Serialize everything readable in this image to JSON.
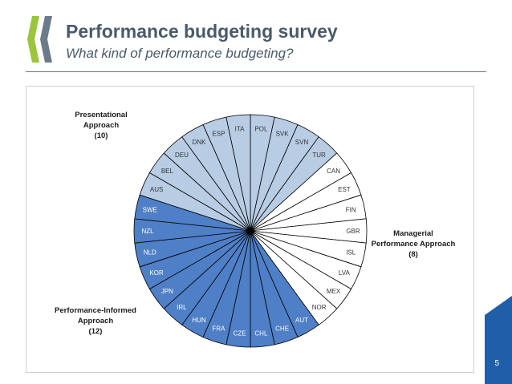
{
  "header": {
    "title": "Performance budgeting survey",
    "subtitle": "What kind of performance budgeting?"
  },
  "page_number": "5",
  "chart_data": {
    "type": "pie",
    "slice_order": "clockwise from top",
    "groups": [
      {
        "name": "Presentational\nApproach\n(10)",
        "count": 10,
        "color": "#b8cce4",
        "members": [
          "AUS",
          "BEL",
          "DEU",
          "DNK",
          "ESP",
          "ITA",
          "POL",
          "SVK",
          "SVN",
          "TUR"
        ]
      },
      {
        "name": "Managerial\nPerformance Approach\n(8)",
        "count": 8,
        "color": "#ffffff",
        "members": [
          "CAN",
          "EST",
          "FIN",
          "GBR",
          "ISL",
          "LVA",
          "MEX",
          "NOR"
        ]
      },
      {
        "name": "Performance-Informed\nApproach\n(12)",
        "count": 12,
        "color": "#4f7fc6",
        "members": [
          "AUT",
          "CHE",
          "CHL",
          "CZE",
          "FRA",
          "HUN",
          "IRL",
          "JPN",
          "KOR",
          "NLD",
          "NZL",
          "SWE"
        ]
      }
    ],
    "slices": [
      {
        "label": "POL",
        "group": 0,
        "value": 1
      },
      {
        "label": "SVK",
        "group": 0,
        "value": 1
      },
      {
        "label": "SVN",
        "group": 0,
        "value": 1
      },
      {
        "label": "TUR",
        "group": 0,
        "value": 1
      },
      {
        "label": "CAN",
        "group": 1,
        "value": 1
      },
      {
        "label": "EST",
        "group": 1,
        "value": 1
      },
      {
        "label": "FIN",
        "group": 1,
        "value": 1
      },
      {
        "label": "GBR",
        "group": 1,
        "value": 1
      },
      {
        "label": "ISL",
        "group": 1,
        "value": 1
      },
      {
        "label": "LVA",
        "group": 1,
        "value": 1
      },
      {
        "label": "MEX",
        "group": 1,
        "value": 1
      },
      {
        "label": "NOR",
        "group": 1,
        "value": 1
      },
      {
        "label": "AUT",
        "group": 2,
        "value": 1
      },
      {
        "label": "CHE",
        "group": 2,
        "value": 1
      },
      {
        "label": "CHL",
        "group": 2,
        "value": 1
      },
      {
        "label": "CZE",
        "group": 2,
        "value": 1
      },
      {
        "label": "FRA",
        "group": 2,
        "value": 1
      },
      {
        "label": "HUN",
        "group": 2,
        "value": 1
      },
      {
        "label": "IRL",
        "group": 2,
        "value": 1
      },
      {
        "label": "JPN",
        "group": 2,
        "value": 1
      },
      {
        "label": "KOR",
        "group": 2,
        "value": 1
      },
      {
        "label": "NLD",
        "group": 2,
        "value": 1
      },
      {
        "label": "NZL",
        "group": 2,
        "value": 1
      },
      {
        "label": "SWE",
        "group": 2,
        "value": 1
      },
      {
        "label": "AUS",
        "group": 0,
        "value": 1
      },
      {
        "label": "BEL",
        "group": 0,
        "value": 1
      },
      {
        "label": "DEU",
        "group": 0,
        "value": 1
      },
      {
        "label": "DNK",
        "group": 0,
        "value": 1
      },
      {
        "label": "ESP",
        "group": 0,
        "value": 1
      },
      {
        "label": "ITA",
        "group": 0,
        "value": 1
      }
    ]
  }
}
